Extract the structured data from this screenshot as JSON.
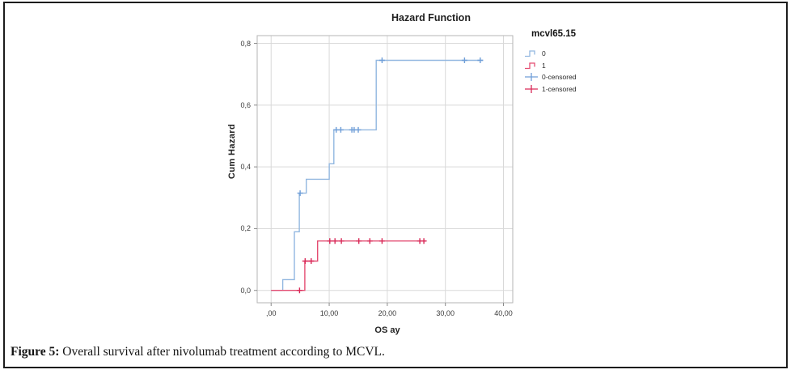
{
  "figure": {
    "caption_label": "Figure 5:",
    "caption_text": " Overall survival after nivolumab treatment according to MCVL."
  },
  "chart_data": {
    "type": "line",
    "subtype": "step-function-cumulative-hazard",
    "title": "Hazard Function",
    "xlabel": "OS ay",
    "ylabel": "Cum Hazard",
    "xlim": [
      -2.4,
      41.6
    ],
    "ylim": [
      -0.04,
      0.825
    ],
    "grid": true,
    "xticks": {
      "values": [
        0,
        10,
        20,
        30,
        40
      ],
      "labels": [
        ",00",
        "10,00",
        "20,00",
        "30,00",
        "40,00"
      ]
    },
    "yticks": {
      "values": [
        0,
        0.2,
        0.4,
        0.6,
        0.8
      ],
      "labels": [
        "0,0",
        "0,2",
        "0,4",
        "0,6",
        "0,8"
      ]
    },
    "colors": {
      "group0_line": "#92b7e0",
      "group0_censor": "#6f9ed8",
      "group1_line": "#e44d72",
      "group1_censor": "#d92a58",
      "gridline": "#d9d9d9",
      "frame": "#b5b5b5",
      "axis_tick": "#8a8a8a"
    },
    "series": [
      {
        "name": "0",
        "line_color": "#92b7e0",
        "censor_color": "#6f9ed8",
        "steps": [
          [
            0,
            0
          ],
          [
            2.0,
            0.035
          ],
          [
            4.0,
            0.19
          ],
          [
            4.85,
            0.315
          ],
          [
            6.05,
            0.36
          ],
          [
            10.0,
            0.41
          ],
          [
            10.8,
            0.52
          ],
          [
            18.1,
            0.745
          ]
        ],
        "end_x": 36.5,
        "censored": [
          [
            5.0,
            0.315
          ],
          [
            11.2,
            0.52
          ],
          [
            12.0,
            0.52
          ],
          [
            13.9,
            0.52
          ],
          [
            14.3,
            0.52
          ],
          [
            15.0,
            0.52
          ],
          [
            19.1,
            0.745
          ],
          [
            33.3,
            0.745
          ],
          [
            36.0,
            0.745
          ]
        ]
      },
      {
        "name": "1",
        "line_color": "#e44d72",
        "censor_color": "#d92a58",
        "steps": [
          [
            0,
            0
          ],
          [
            5.8,
            0.095
          ],
          [
            8.0,
            0.16
          ]
        ],
        "end_x": 26.7,
        "censored": [
          [
            4.9,
            0
          ],
          [
            5.85,
            0.095
          ],
          [
            6.9,
            0.095
          ],
          [
            10.1,
            0.16
          ],
          [
            11.0,
            0.16
          ],
          [
            12.1,
            0.16
          ],
          [
            15.1,
            0.16
          ],
          [
            17.0,
            0.16
          ],
          [
            19.1,
            0.16
          ],
          [
            25.6,
            0.16
          ],
          [
            26.3,
            0.16
          ]
        ]
      }
    ],
    "legend": {
      "title": "mcvl65.15",
      "position": "right",
      "entries": [
        {
          "label": "0",
          "symbol": "step",
          "color": "#92b7e0"
        },
        {
          "label": "1",
          "symbol": "step",
          "color": "#e44d72"
        },
        {
          "label": "0-censored",
          "symbol": "plus",
          "color": "#6f9ed8"
        },
        {
          "label": "1-censored",
          "symbol": "plus",
          "color": "#d92a58"
        }
      ]
    }
  }
}
